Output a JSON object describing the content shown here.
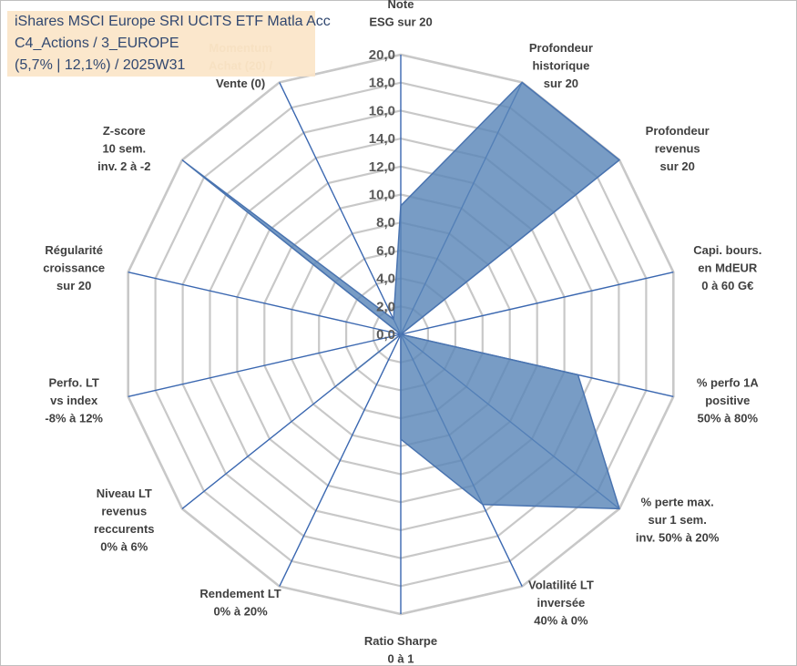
{
  "title": {
    "line1": "iShares MSCI Europe SRI UCITS ETF Matla Acc",
    "line2": "C4_Actions / 3_EUROPE",
    "line3": "(5,7% | 12,1%) / 2025W31"
  },
  "chart_data": {
    "type": "radar",
    "title": "iShares MSCI Europe SRI UCITS ETF Matla Acc C4_Actions / 3_EUROPE (5,7% | 12,1%) / 2025W31",
    "rlim": [
      0,
      20
    ],
    "tick_labels": [
      "0,0",
      "2,0",
      "4,0",
      "6,0",
      "8,0",
      "10,0",
      "12,0",
      "14,0",
      "16,0",
      "18,0",
      "20,0"
    ],
    "grid": true,
    "colors": {
      "fill": "#5a86b8",
      "stroke": "#4a74b0",
      "axis": "#3a67b0",
      "grid": "#c8c8c8",
      "muted_label": "#c9b487"
    },
    "categories": [
      [
        "Note",
        "ESG sur 20"
      ],
      [
        "Profondeur",
        "historique",
        "sur 20"
      ],
      [
        "Profondeur",
        "revenus",
        "sur 20"
      ],
      [
        "Capi. bours.",
        "en MdEUR",
        "0 à 60 G€"
      ],
      [
        "% perfo 1A",
        "positive",
        "50% à 80%"
      ],
      [
        "% perte max.",
        "sur 1 sem.",
        "inv. 50% à 20%"
      ],
      [
        "Volatilité LT",
        "inversée",
        "40% à 0%"
      ],
      [
        "Ratio Sharpe",
        "0 à 1"
      ],
      [
        "Rendement LT",
        "0% à 20%"
      ],
      [
        "Niveau LT",
        "revenus",
        "reccurents",
        "0% à 6%"
      ],
      [
        "Perfo. LT",
        "vs index",
        "-8% à 12%"
      ],
      [
        "Régularité",
        "croissance",
        "sur 20"
      ],
      [
        "Z-score",
        "10 sem.",
        "inv. 2 à -2"
      ],
      [
        "Momentum",
        "Achat (20) /",
        "Vente (0)"
      ]
    ],
    "series": [
      {
        "values": [
          9.2,
          20,
          20,
          0,
          13.0,
          20,
          13.5,
          7.5,
          0,
          5.8,
          0,
          0,
          19.6,
          1.2
        ]
      }
    ]
  }
}
